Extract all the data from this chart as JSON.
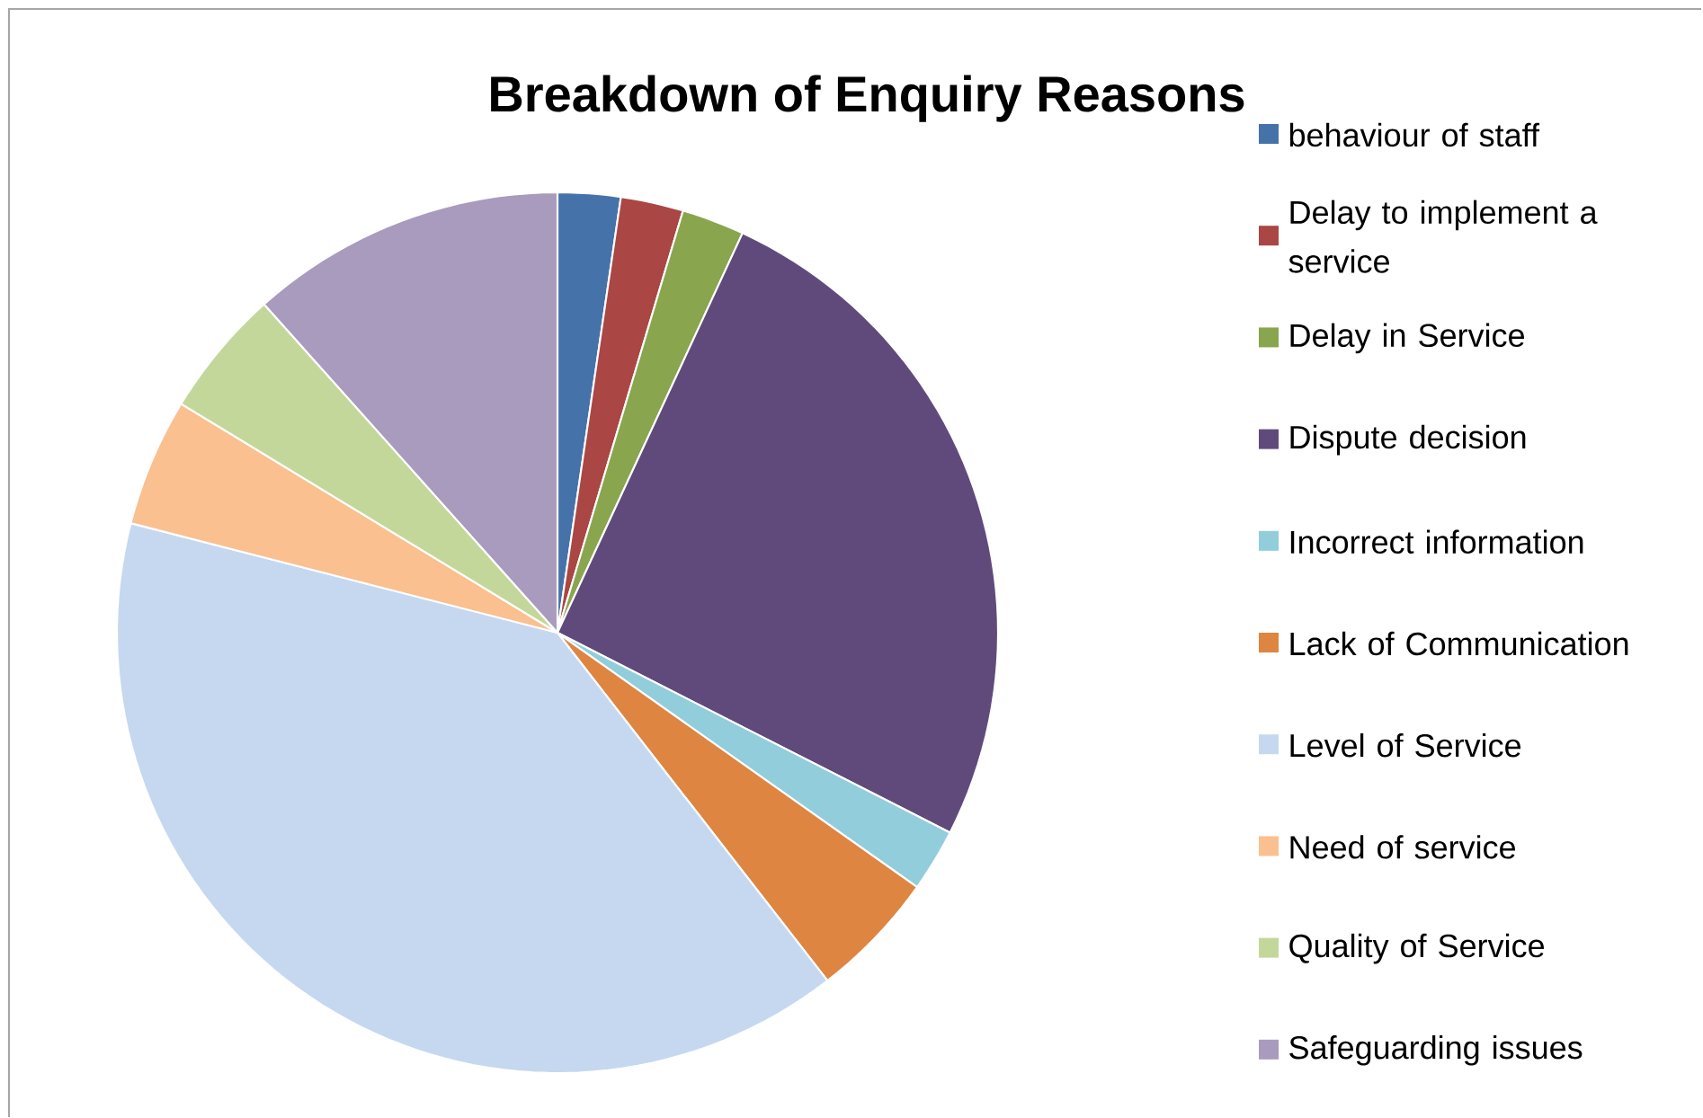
{
  "chart_data": {
    "type": "pie",
    "title": "Breakdown of Enquiry Reasons",
    "categories": [
      "behaviour of staff",
      "Delay to implement a service",
      "Delay in Service",
      "Dispute decision",
      "Incorrect information",
      "Lack of Communication",
      "Level of Service",
      "Need of service",
      "Quality of Service",
      "Safeguarding issues"
    ],
    "values": [
      2.3,
      2.3,
      2.3,
      25.6,
      2.3,
      4.7,
      39.5,
      4.7,
      4.7,
      11.6
    ],
    "colors": [
      "#4672aa",
      "#aa4643",
      "#89a54e",
      "#604a7b",
      "#92cddc",
      "#de8541",
      "#c6d8f0",
      "#fac090",
      "#c4d79b",
      "#a99bbd"
    ],
    "legend": "right"
  }
}
